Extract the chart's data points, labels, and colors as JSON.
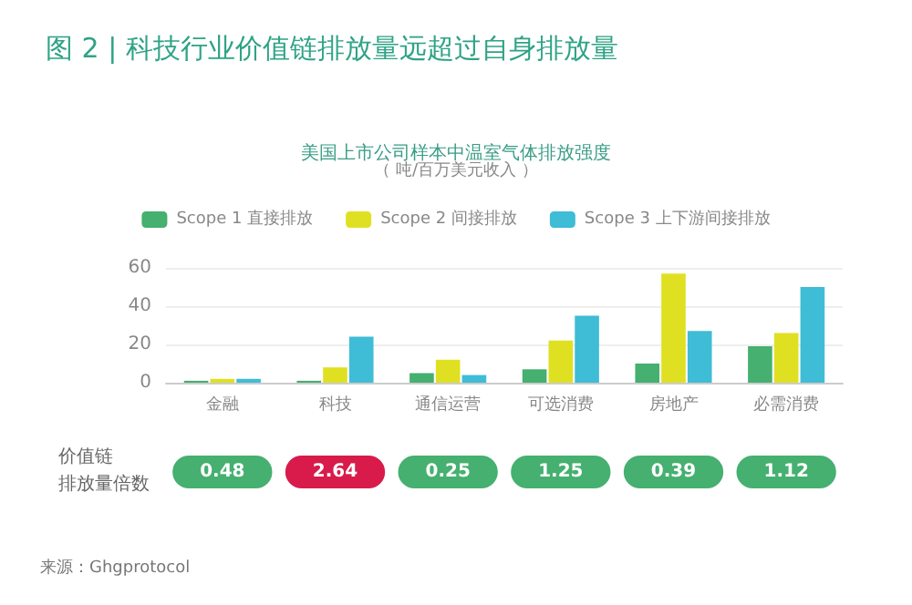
{
  "chart_data": {
    "type": "bar",
    "title": "图 2 | 科技行业价值链排放量远超过自身排放量",
    "subtitle": "美国上市公司样本中温室气体排放强度",
    "categories": [
      "金融",
      "科技",
      "通信运营",
      "可选消费",
      "房地产",
      "必需消费"
    ],
    "series": [
      {
        "name": "Scope 1 直接排放",
        "color": "#45b06f",
        "values": [
          1,
          1,
          5,
          7,
          10,
          19
        ]
      },
      {
        "name": "Scope 2 间接排放",
        "color": "#e0e022",
        "values": [
          2,
          8,
          12,
          22,
          57,
          26
        ]
      },
      {
        "name": "Scope 3 上下游间接排放",
        "color": "#3fbcd6",
        "values": [
          2,
          24,
          4,
          35,
          27,
          50
        ]
      }
    ],
    "ylim": [
      0,
      60
    ],
    "yticks": [
      0,
      20,
      40,
      60
    ],
    "grid": "y",
    "legend": "top",
    "annotations": [
      "0.48",
      "2.64",
      "0.25",
      "1.25",
      "0.39",
      "1.12",
      "价值链",
      "排放量倍数",
      "（ 吨/百万美元收入 ）",
      "来源：Ghgprotocol"
    ]
  }
}
